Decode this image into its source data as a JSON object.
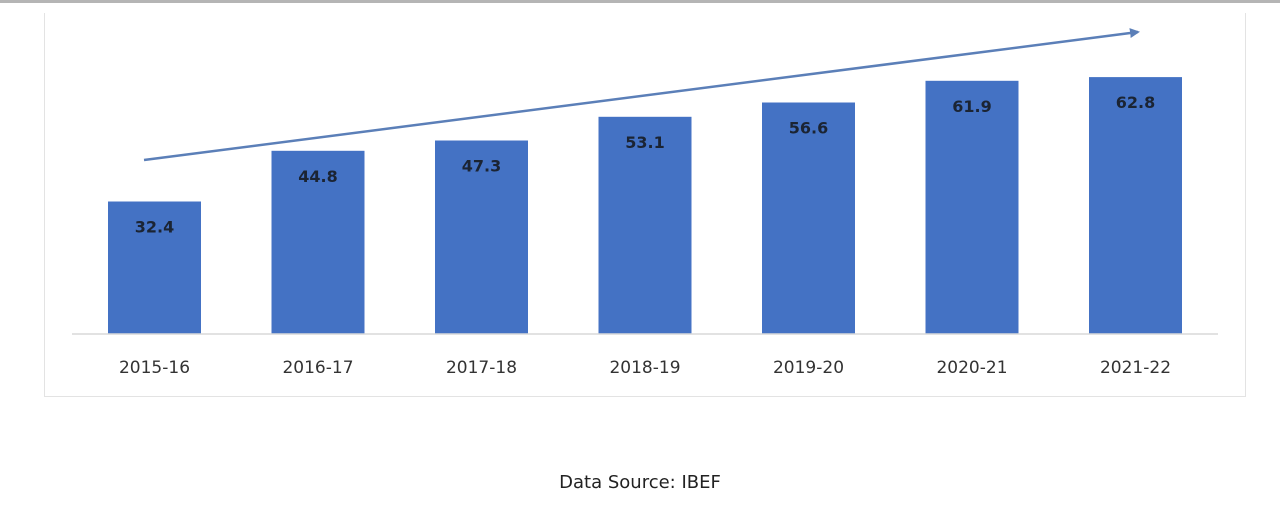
{
  "chart_data": {
    "type": "bar",
    "categories": [
      "2015-16",
      "2016-17",
      "2017-18",
      "2018-19",
      "2019-20",
      "2020-21",
      "2021-22"
    ],
    "values": [
      32.4,
      44.8,
      47.3,
      53.1,
      56.6,
      61.9,
      62.8
    ],
    "title": "",
    "xlabel": "",
    "ylabel": "",
    "data_labels": [
      "32.4",
      "44.8",
      "47.3",
      "53.1",
      "56.6",
      "61.9",
      "62.8"
    ],
    "y_axis_visible": false,
    "grid": false,
    "legend": "none",
    "trend_arrow": true,
    "bar_color": "#4472c4",
    "arrow_color": "#5b7fb8"
  },
  "source_text": "Data Source: IBEF"
}
